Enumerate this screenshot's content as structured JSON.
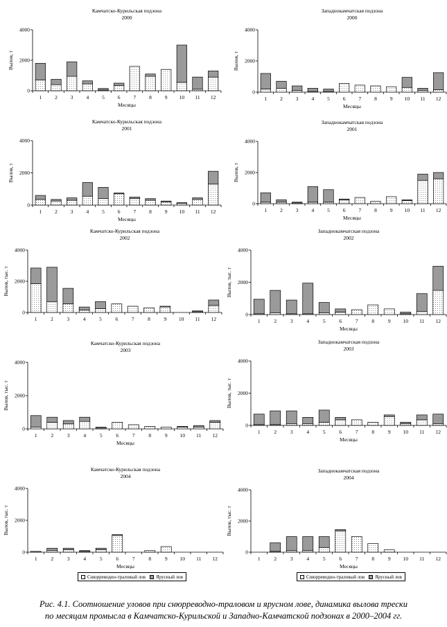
{
  "chart_data": [
    {
      "type": "bar",
      "stacked": true,
      "title": "Камчатско-Курильская подзона",
      "subtitle": "2000",
      "ylabel": "Вылов, т",
      "xlabel": "Месяцы",
      "ylim": [
        0,
        4000
      ],
      "yticks": [
        0,
        2000,
        4000
      ],
      "categories": [
        "1",
        "2",
        "3",
        "4",
        "5",
        "6",
        "7",
        "8",
        "9",
        "10",
        "11",
        "12"
      ],
      "series": [
        {
          "values": [
            700,
            400,
            950,
            450,
            50,
            350,
            1600,
            950,
            1400,
            550,
            100,
            900
          ]
        },
        {
          "values": [
            1100,
            350,
            950,
            200,
            100,
            150,
            0,
            150,
            0,
            2450,
            800,
            400
          ]
        }
      ]
    },
    {
      "type": "bar",
      "stacked": true,
      "title": "Западнокамчатская подзона",
      "subtitle": "2000",
      "ylabel": "Вылов, т",
      "xlabel": "Месяцы",
      "ylim": [
        0,
        4000
      ],
      "yticks": [
        0,
        2000,
        4000
      ],
      "categories": [
        "1",
        "2",
        "3",
        "4",
        "5",
        "6",
        "7",
        "8",
        "9",
        "10",
        "11",
        "12"
      ],
      "series": [
        {
          "values": [
            200,
            250,
            100,
            50,
            50,
            550,
            450,
            400,
            350,
            300,
            100,
            150
          ]
        },
        {
          "values": [
            1000,
            450,
            300,
            200,
            150,
            0,
            0,
            0,
            0,
            650,
            150,
            1100
          ]
        }
      ]
    },
    {
      "type": "bar",
      "stacked": true,
      "title": "Камчатско-Курильская подзона",
      "subtitle": "2001",
      "ylabel": "Вылов, т",
      "xlabel": "Месяцы",
      "ylim": [
        0,
        4000
      ],
      "yticks": [
        0,
        2000,
        4000
      ],
      "categories": [
        "1",
        "2",
        "3",
        "4",
        "5",
        "6",
        "7",
        "8",
        "9",
        "10",
        "11",
        "12"
      ],
      "series": [
        {
          "values": [
            350,
            250,
            300,
            550,
            400,
            700,
            400,
            300,
            200,
            100,
            350,
            1300
          ]
        },
        {
          "values": [
            250,
            100,
            150,
            850,
            700,
            50,
            100,
            100,
            50,
            50,
            100,
            800
          ]
        }
      ]
    },
    {
      "type": "bar",
      "stacked": true,
      "title": "Западнокамчатская подзона",
      "subtitle": "2001",
      "ylabel": "Вылов, т",
      "xlabel": "Месяцы",
      "ylim": [
        0,
        4000
      ],
      "yticks": [
        0,
        2000,
        4000
      ],
      "categories": [
        "1",
        "2",
        "3",
        "4",
        "5",
        "6",
        "7",
        "8",
        "9",
        "10",
        "11",
        "12"
      ],
      "series": [
        {
          "values": [
            100,
            100,
            50,
            100,
            100,
            250,
            400,
            150,
            450,
            200,
            1500,
            1600
          ]
        },
        {
          "values": [
            600,
            150,
            50,
            1000,
            800,
            50,
            0,
            0,
            0,
            50,
            400,
            400
          ]
        }
      ]
    },
    {
      "type": "bar",
      "stacked": true,
      "title": "Камчатско-Курильская подзона",
      "subtitle": "2002",
      "ylabel": "Вылов, тыс. т",
      "xlabel": "",
      "ylim": [
        0,
        4000
      ],
      "yticks": [
        0,
        2000,
        4000
      ],
      "categories": [
        "1",
        "2",
        "3",
        "4",
        "5",
        "6",
        "7",
        "8",
        "9",
        "10",
        "11",
        "12"
      ],
      "series": [
        {
          "values": [
            1850,
            700,
            550,
            150,
            250,
            550,
            400,
            300,
            350,
            0,
            50,
            450
          ]
        },
        {
          "values": [
            1000,
            2200,
            1000,
            200,
            450,
            0,
            0,
            0,
            50,
            0,
            50,
            350
          ]
        }
      ]
    },
    {
      "type": "bar",
      "stacked": true,
      "title": "Западнокамчатская подзона",
      "subtitle": "2002",
      "ylabel": "Вылов, тыс. т",
      "xlabel": "Месяцы",
      "ylim": [
        0,
        4000
      ],
      "yticks": [
        0,
        2000,
        4000
      ],
      "categories": [
        "1",
        "2",
        "3",
        "4",
        "5",
        "6",
        "7",
        "8",
        "9",
        "10",
        "11",
        "12"
      ],
      "series": [
        {
          "values": [
            50,
            100,
            50,
            50,
            100,
            150,
            300,
            600,
            350,
            50,
            200,
            1500
          ]
        },
        {
          "values": [
            900,
            1400,
            850,
            1900,
            650,
            200,
            0,
            0,
            0,
            100,
            1100,
            1500
          ]
        }
      ]
    },
    {
      "type": "bar",
      "stacked": true,
      "title": "Камчатско-Курильская подзона",
      "subtitle": "2003",
      "ylabel": "Вылов, тыс. т",
      "xlabel": "Месяцы",
      "ylim": [
        0,
        4000
      ],
      "yticks": [
        0,
        2000,
        4000
      ],
      "categories": [
        "1",
        "2",
        "3",
        "4",
        "5",
        "6",
        "7",
        "8",
        "9",
        "10",
        "11",
        "12"
      ],
      "series": [
        {
          "values": [
            100,
            400,
            300,
            450,
            50,
            400,
            250,
            150,
            100,
            100,
            100,
            400
          ]
        },
        {
          "values": [
            700,
            300,
            200,
            250,
            50,
            0,
            0,
            0,
            0,
            50,
            100,
            100
          ]
        }
      ]
    },
    {
      "type": "bar",
      "stacked": true,
      "title": "Западнокамчатская подзона",
      "subtitle": "2003",
      "ylabel": "Вылов, тыс. т",
      "xlabel": "Месяцы",
      "ylim": [
        0,
        4000
      ],
      "yticks": [
        0,
        2000,
        4000
      ],
      "categories": [
        "1",
        "2",
        "3",
        "4",
        "5",
        "6",
        "7",
        "8",
        "9",
        "10",
        "11",
        "12"
      ],
      "series": [
        {
          "values": [
            50,
            50,
            100,
            100,
            200,
            350,
            350,
            200,
            550,
            100,
            350,
            100
          ]
        },
        {
          "values": [
            650,
            850,
            800,
            400,
            750,
            150,
            0,
            0,
            100,
            100,
            300,
            600
          ]
        }
      ]
    },
    {
      "type": "bar",
      "stacked": true,
      "title": "Камчатско-Курильская подзона",
      "subtitle": "2004",
      "ylabel": "Вылов, тыс. т",
      "xlabel": "Месяцы",
      "ylim": [
        0,
        4000
      ],
      "yticks": [
        0,
        2000,
        4000
      ],
      "categories": [
        "1",
        "2",
        "3",
        "4",
        "5",
        "6",
        "7",
        "8",
        "9",
        "10",
        "11",
        "12"
      ],
      "series": [
        {
          "values": [
            0,
            100,
            150,
            50,
            150,
            1050,
            0,
            100,
            350,
            0,
            0,
            0
          ]
        },
        {
          "values": [
            50,
            150,
            100,
            50,
            100,
            50,
            0,
            0,
            0,
            0,
            0,
            0
          ]
        }
      ]
    },
    {
      "type": "bar",
      "stacked": true,
      "title": "Западнокамчатская подзона",
      "subtitle": "2004",
      "ylabel": "Вылов, тыс. т",
      "xlabel": "Месяцы",
      "ylim": [
        0,
        4000
      ],
      "yticks": [
        0,
        2000,
        4000
      ],
      "categories": [
        "1",
        "2",
        "3",
        "4",
        "5",
        "6",
        "7",
        "8",
        "9",
        "10",
        "11",
        "12"
      ],
      "series": [
        {
          "values": [
            0,
            50,
            100,
            100,
            300,
            1350,
            1000,
            550,
            150,
            0,
            0,
            0
          ]
        },
        {
          "values": [
            0,
            550,
            900,
            900,
            700,
            100,
            0,
            0,
            0,
            0,
            0,
            0
          ]
        }
      ]
    }
  ],
  "legend": {
    "trawl": "Снюрреводно-траловый лов",
    "longline": "Ярусный лов"
  },
  "caption": {
    "line1": "Рис. 4.1. Соотношение уловов при снюрреводно-траловом и ярусном лове, динамика вылова трески",
    "line2": "по месяцам промысла в Камчатско-Курильской и Западно-Камчатской подзонах в 2000–2004 гг."
  },
  "colors": {
    "trawl_fill": "#ffffff",
    "longline_fill": "#9a9a9a",
    "axis": "#000000"
  }
}
